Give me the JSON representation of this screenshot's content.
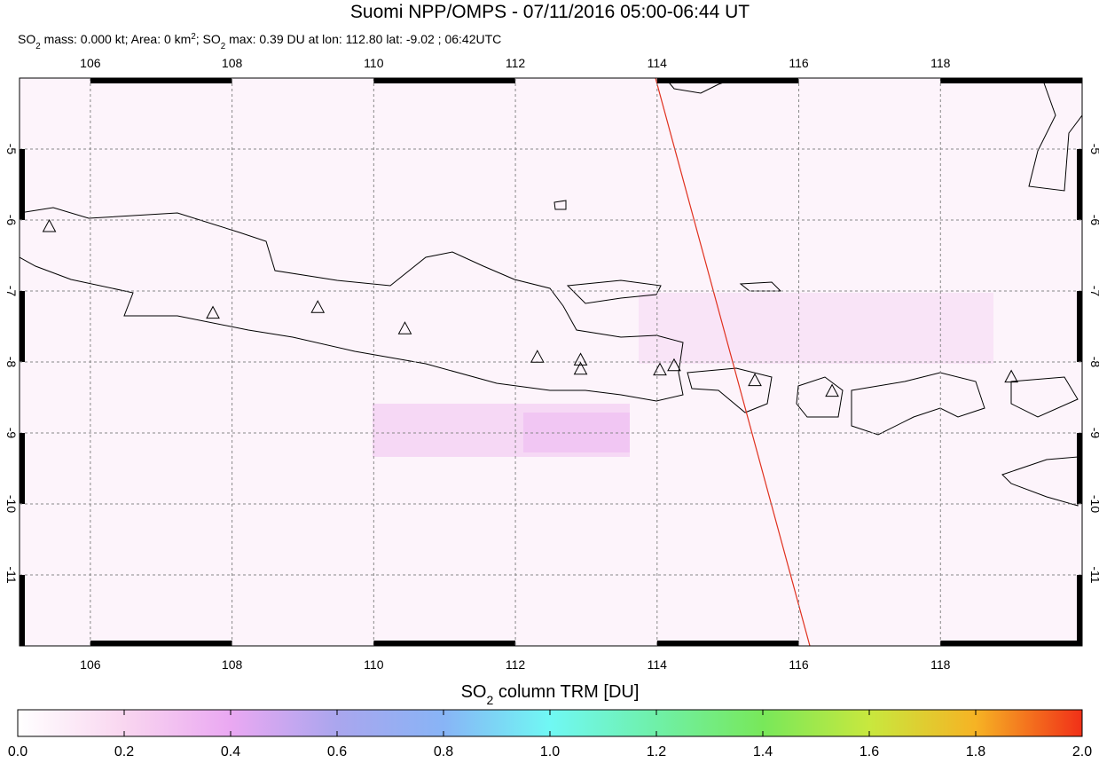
{
  "title": "Suomi NPP/OMPS - 07/11/2016 05:00-06:44 UT",
  "subtitle": [
    "SO",
    "2",
    " mass: 0.000 kt; Area: 0 km",
    "2",
    "; SO",
    "2",
    " max: 0.39 DU at lon: 112.80 lat: -9.02 ; 06:42UTC"
  ],
  "map": {
    "xlim": [
      105,
      120
    ],
    "ylim": [
      -12,
      -4
    ],
    "xticks": [
      106,
      108,
      110,
      112,
      114,
      116,
      118
    ],
    "yticks": [
      -5,
      -6,
      -7,
      -8,
      -9,
      -10,
      -11
    ],
    "volcanoes": [
      [
        105.42,
        -6.1
      ],
      [
        107.73,
        -7.32
      ],
      [
        109.21,
        -7.24
      ],
      [
        110.44,
        -7.54
      ],
      [
        112.31,
        -7.94
      ],
      [
        112.92,
        -7.98
      ],
      [
        112.92,
        -8.11
      ],
      [
        114.04,
        -8.12
      ],
      [
        114.24,
        -8.06
      ],
      [
        115.38,
        -8.27
      ],
      [
        116.47,
        -8.42
      ],
      [
        119.0,
        -8.22
      ]
    ]
  },
  "colorbar": {
    "label": [
      "SO",
      "2",
      " column TRM [DU]"
    ],
    "lim": [
      0,
      2
    ],
    "ticks": [
      {
        "value": 0,
        "label": "0.0"
      },
      {
        "value": 0.2,
        "label": "0.2"
      },
      {
        "value": 0.4,
        "label": "0.4"
      },
      {
        "value": 0.6,
        "label": "0.6"
      },
      {
        "value": 0.8,
        "label": "0.8"
      },
      {
        "value": 1,
        "label": "1.0"
      },
      {
        "value": 1.2,
        "label": "1.2"
      },
      {
        "value": 1.4,
        "label": "1.4"
      },
      {
        "value": 1.6,
        "label": "1.6"
      },
      {
        "value": 1.8,
        "label": "1.8"
      },
      {
        "value": 2,
        "label": "2.0"
      }
    ],
    "colors": [
      "#ffffff",
      "#f9d6f0",
      "#eaa8f2",
      "#aaa6ee",
      "#88b4f6",
      "#70f8f4",
      "#6ff0a8",
      "#78e85a",
      "#c8e83e",
      "#f6b324",
      "#f13018"
    ]
  }
}
